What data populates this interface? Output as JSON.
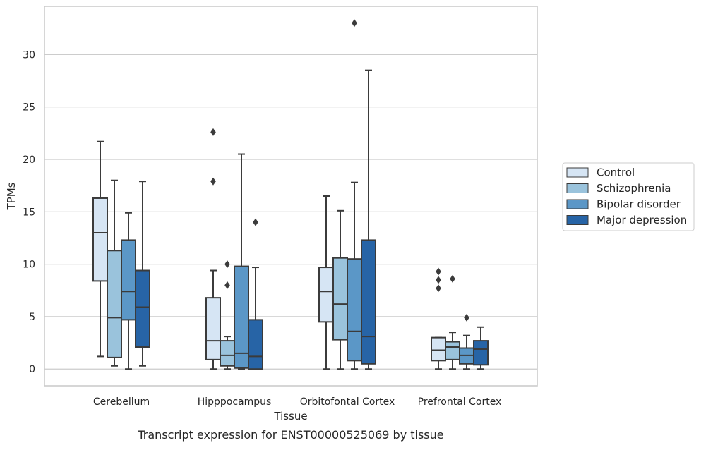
{
  "chart_data": {
    "type": "box",
    "caption": "Transcript expression for ENST00000525069 by tissue",
    "xlabel": "Tissue",
    "ylabel": "TPMs",
    "ylim": [
      -1.6,
      34.6
    ],
    "yticks": [
      0,
      5,
      10,
      15,
      20,
      25,
      30
    ],
    "grid": true,
    "legend_position": "right",
    "categories": [
      "Cerebellum",
      "Hipppocampus",
      "Orbitofontal Cortex",
      "Prefrontal Cortex"
    ],
    "series": [
      {
        "name": "Control",
        "color": "#d6e5f4",
        "boxes": [
          {
            "whisker_low": 1.2,
            "q1": 8.4,
            "median": 13.0,
            "q3": 16.3,
            "whisker_high": 21.7,
            "outliers": []
          },
          {
            "whisker_low": 0.0,
            "q1": 0.9,
            "median": 2.7,
            "q3": 6.8,
            "whisker_high": 9.4,
            "outliers": [
              17.9,
              22.6
            ]
          },
          {
            "whisker_low": 0.0,
            "q1": 4.5,
            "median": 7.4,
            "q3": 9.7,
            "whisker_high": 16.5,
            "outliers": []
          },
          {
            "whisker_low": 0.0,
            "q1": 0.8,
            "median": 1.8,
            "q3": 3.0,
            "whisker_high": 3.0,
            "outliers": [
              7.7,
              8.5,
              9.3
            ]
          }
        ]
      },
      {
        "name": "Schizophrenia",
        "color": "#9ac3dc",
        "boxes": [
          {
            "whisker_low": 0.3,
            "q1": 1.1,
            "median": 4.9,
            "q3": 11.3,
            "whisker_high": 18.0,
            "outliers": []
          },
          {
            "whisker_low": 0.0,
            "q1": 0.3,
            "median": 1.3,
            "q3": 2.7,
            "whisker_high": 3.1,
            "outliers": [
              8.0,
              10.0
            ]
          },
          {
            "whisker_low": 0.0,
            "q1": 2.8,
            "median": 6.2,
            "q3": 10.6,
            "whisker_high": 15.1,
            "outliers": []
          },
          {
            "whisker_low": 0.0,
            "q1": 0.9,
            "median": 2.1,
            "q3": 2.6,
            "whisker_high": 3.5,
            "outliers": [
              8.6
            ]
          }
        ]
      },
      {
        "name": "Bipolar disorder",
        "color": "#5b97c7",
        "boxes": [
          {
            "whisker_low": 0.0,
            "q1": 4.7,
            "median": 7.4,
            "q3": 12.3,
            "whisker_high": 14.9,
            "outliers": []
          },
          {
            "whisker_low": 0.0,
            "q1": 0.1,
            "median": 1.5,
            "q3": 9.8,
            "whisker_high": 20.5,
            "outliers": []
          },
          {
            "whisker_low": 0.0,
            "q1": 0.8,
            "median": 3.6,
            "q3": 10.5,
            "whisker_high": 17.8,
            "outliers": [
              33.0
            ]
          },
          {
            "whisker_low": 0.0,
            "q1": 0.5,
            "median": 1.3,
            "q3": 2.0,
            "whisker_high": 3.2,
            "outliers": [
              4.9
            ]
          }
        ]
      },
      {
        "name": "Major depression",
        "color": "#2764a6",
        "boxes": [
          {
            "whisker_low": 0.3,
            "q1": 2.1,
            "median": 5.9,
            "q3": 9.4,
            "whisker_high": 17.9,
            "outliers": []
          },
          {
            "whisker_low": 0.0,
            "q1": 0.0,
            "median": 1.2,
            "q3": 4.7,
            "whisker_high": 9.7,
            "outliers": [
              14.0
            ]
          },
          {
            "whisker_low": 0.0,
            "q1": 0.5,
            "median": 3.1,
            "q3": 12.3,
            "whisker_high": 28.5,
            "outliers": []
          },
          {
            "whisker_low": 0.0,
            "q1": 0.4,
            "median": 1.9,
            "q3": 2.7,
            "whisker_high": 4.0,
            "outliers": []
          }
        ]
      }
    ]
  }
}
